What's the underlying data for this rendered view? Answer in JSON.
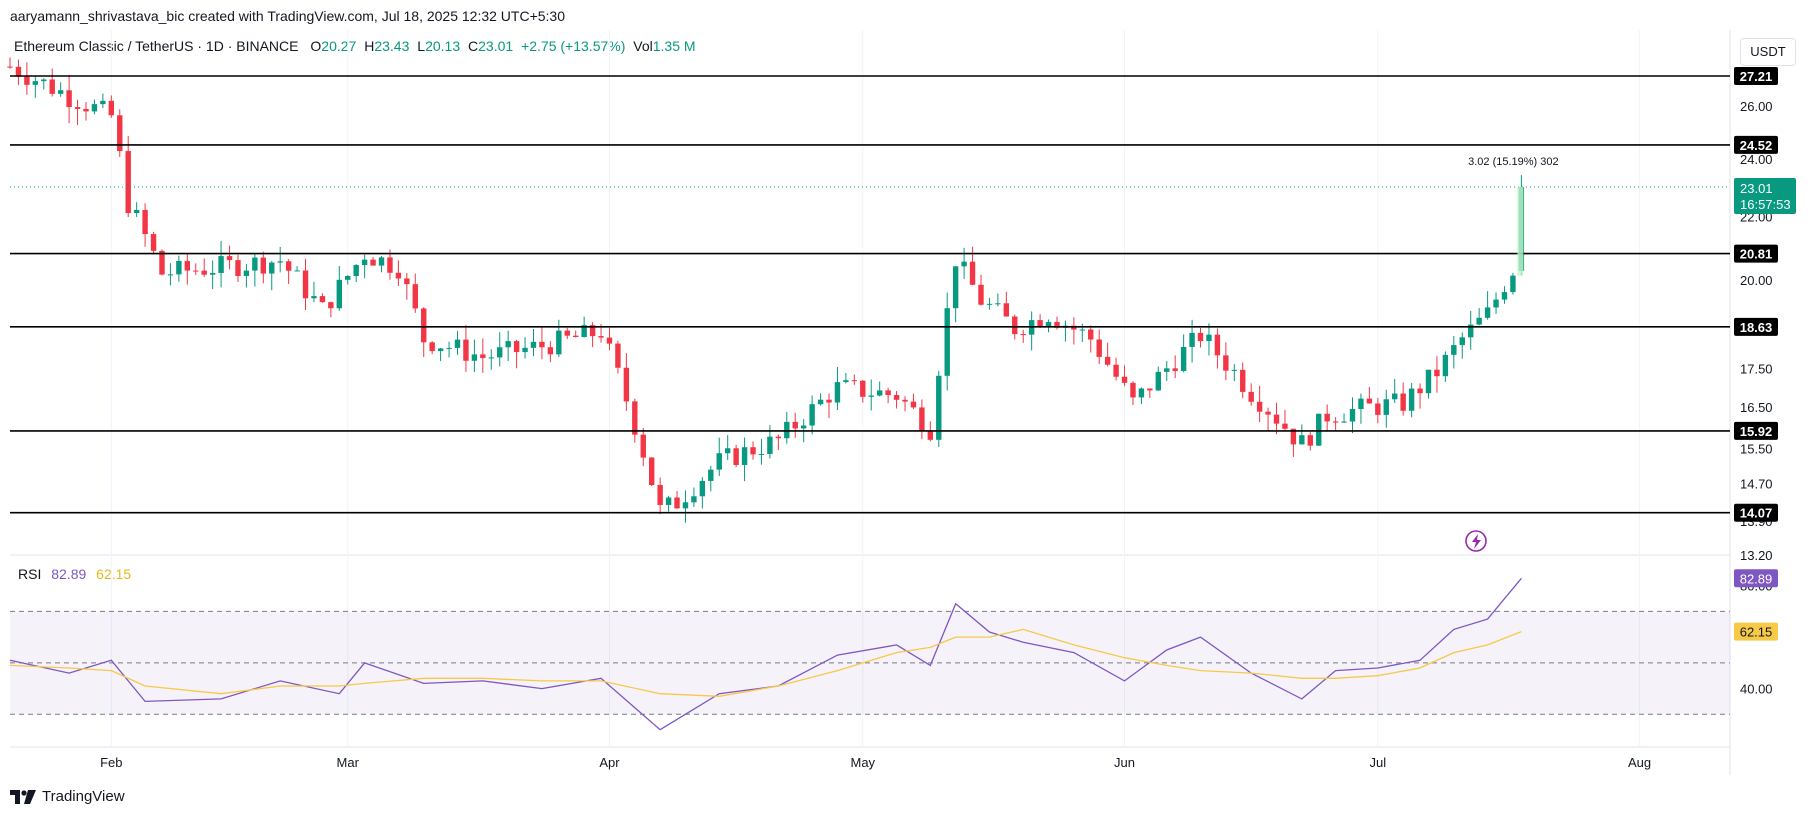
{
  "header": {
    "author_line": "aaryamann_shrivastava_bic created with TradingView.com, Jul 18, 2025 12:32 UTC+5:30"
  },
  "legend": {
    "symbol": "Ethereum Classic / TetherUS · 1D · BINANCE",
    "o_label": "O",
    "o_value": "20.27",
    "h_label": "H",
    "h_value": "23.43",
    "l_label": "L",
    "l_value": "20.13",
    "c_label": "C",
    "c_value": "23.01",
    "change": "+2.75 (+13.57%)",
    "vol_label": "Vol",
    "vol_value": "1.35 M"
  },
  "currency_button": "USDT",
  "footer": {
    "brand": "TradingView",
    "logo_icon": "tradingview-logo-icon"
  },
  "price_axis": {
    "ticks": [
      "26.00",
      "24.00",
      "22.00",
      "20.00",
      "17.50",
      "16.50",
      "15.50",
      "14.70",
      "13.90",
      "13.20"
    ],
    "level_labels": [
      "27.21",
      "24.52",
      "20.81",
      "18.63",
      "15.92",
      "14.07"
    ],
    "current_price": "23.01",
    "countdown": "16:57:53"
  },
  "measure_label": "3.02 (15.19%) 302",
  "rsi": {
    "label": "RSI",
    "rsi_value": "82.89",
    "ma_value": "62.15",
    "axis_ticks": [
      "80.00",
      "40.00"
    ],
    "badge_rsi": "82.89",
    "badge_ma": "62.15"
  },
  "time_axis": [
    "Feb",
    "Mar",
    "Apr",
    "May",
    "Jun",
    "Jul",
    "Aug"
  ],
  "colors": {
    "up": "#089981",
    "down": "#f23645",
    "rsi": "#7e57c2",
    "rsi_ma": "#f7c948",
    "level": "#000000",
    "alert": "#9c27b0"
  },
  "chart_data": [
    {
      "type": "candlestick",
      "title": "Ethereum Classic / TetherUS · 1D · BINANCE",
      "x_range": [
        "2025-01-20",
        "2025-08-20"
      ],
      "ylim": [
        13.2,
        28.3
      ],
      "scale": "log",
      "horizontal_levels": [
        27.21,
        24.52,
        20.81,
        18.63,
        15.92,
        14.07
      ],
      "last_candle": {
        "date": "2025-07-18",
        "open": 20.27,
        "high": 23.43,
        "low": 20.13,
        "close": 23.01,
        "volume": "1.35 M"
      },
      "close_series": {
        "x": [
          "2025-01-20",
          "2025-01-27",
          "2025-02-01",
          "2025-02-03",
          "2025-02-07",
          "2025-02-14",
          "2025-02-21",
          "2025-02-26",
          "2025-03-03",
          "2025-03-07",
          "2025-03-10",
          "2025-03-17",
          "2025-03-24",
          "2025-03-31",
          "2025-04-04",
          "2025-04-07",
          "2025-04-09",
          "2025-04-14",
          "2025-04-21",
          "2025-04-28",
          "2025-05-05",
          "2025-05-09",
          "2025-05-12",
          "2025-05-15",
          "2025-05-19",
          "2025-05-23",
          "2025-05-28",
          "2025-06-02",
          "2025-06-06",
          "2025-06-10",
          "2025-06-16",
          "2025-06-22",
          "2025-06-25",
          "2025-06-30",
          "2025-07-04",
          "2025-07-08",
          "2025-07-11",
          "2025-07-14",
          "2025-07-17",
          "2025-07-18"
        ],
        "y": [
          27.6,
          26.4,
          25.6,
          22.5,
          20.2,
          20.4,
          20.6,
          19.1,
          20.8,
          20.4,
          18.3,
          17.8,
          18.1,
          18.5,
          16.1,
          14.1,
          14.3,
          15.2,
          15.7,
          17.0,
          16.8,
          16.0,
          20.6,
          19.4,
          18.6,
          19.0,
          18.3,
          16.6,
          17.5,
          18.4,
          16.9,
          15.6,
          16.3,
          16.5,
          16.6,
          17.4,
          18.3,
          19.0,
          20.3,
          23.01
        ]
      }
    },
    {
      "type": "line",
      "title": "RSI",
      "ylim": [
        20,
        90
      ],
      "bands": [
        30,
        50,
        70
      ],
      "x": [
        "2025-01-20",
        "2025-01-27",
        "2025-02-01",
        "2025-02-05",
        "2025-02-14",
        "2025-02-21",
        "2025-02-28",
        "2025-03-03",
        "2025-03-10",
        "2025-03-17",
        "2025-03-24",
        "2025-03-31",
        "2025-04-07",
        "2025-04-14",
        "2025-04-21",
        "2025-04-28",
        "2025-05-05",
        "2025-05-09",
        "2025-05-12",
        "2025-05-16",
        "2025-05-20",
        "2025-05-26",
        "2025-06-01",
        "2025-06-06",
        "2025-06-10",
        "2025-06-16",
        "2025-06-22",
        "2025-06-26",
        "2025-07-01",
        "2025-07-06",
        "2025-07-10",
        "2025-07-14",
        "2025-07-18"
      ],
      "series": [
        {
          "name": "RSI",
          "values": [
            51,
            46,
            51,
            35,
            36,
            43,
            38,
            50,
            42,
            43,
            40,
            44,
            24,
            38,
            41,
            53,
            57,
            49,
            73,
            62,
            58,
            54,
            43,
            55,
            60,
            46,
            36,
            47,
            48,
            51,
            63,
            67,
            82.89
          ]
        },
        {
          "name": "",
          "values": [
            49,
            48,
            47,
            41,
            38,
            41,
            41,
            42,
            44,
            44,
            43,
            43,
            38,
            37,
            41,
            47,
            54,
            56,
            60,
            60,
            63,
            57,
            52,
            49,
            47,
            46,
            44,
            44,
            45,
            48,
            54,
            57,
            62.15
          ]
        }
      ]
    }
  ]
}
